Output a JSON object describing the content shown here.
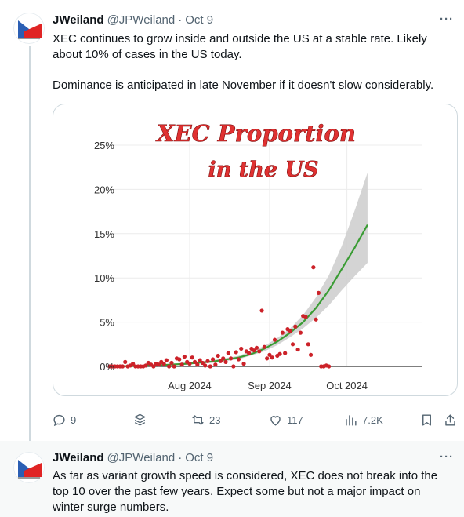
{
  "tweet1": {
    "author_name": "JWeiland",
    "handle": "@JPWeiland",
    "separator": "·",
    "date": "Oct 9",
    "paragraph1": "XEC continues to grow inside and outside the US at a stable rate.  Likely about 10% of cases in the US today.",
    "paragraph2": "Dominance is anticipated in late November if it doesn't slow considerably.",
    "actions": {
      "reply_count": "9",
      "retweet_count": "23",
      "like_count": "117",
      "views_count": "7.2K"
    }
  },
  "tweet2": {
    "author_name": "JWeiland",
    "handle": "@JPWeiland",
    "separator": "·",
    "date": "Oct 9",
    "paragraph1": "As far as variant growth speed is considered, XEC does not break into the top 10 over the past few years.  Expect some but not a major impact on winter surge numbers."
  },
  "icons": {
    "reply": "reply-icon",
    "grok": "grok-icon",
    "retweet": "retweet-icon",
    "like": "heart-icon",
    "views": "views-icon",
    "bookmark": "bookmark-icon",
    "share": "share-icon",
    "more": "more-icon"
  },
  "colors": {
    "text": "#0f1419",
    "muted": "#536471",
    "border": "#cfd9de",
    "points": "#cc2229",
    "fit": "#3a9c34",
    "band": "#cfcfcf",
    "title": "#e03131"
  },
  "chart_data": {
    "type": "scatter",
    "title_line1": "XEC Proportion",
    "title_line2": "in the US",
    "x_ticks": [
      "Aug 2024",
      "Sep 2024",
      "Oct 2024"
    ],
    "x_tick_days": [
      31,
      62,
      92
    ],
    "y_ticks": [
      "0%",
      "5%",
      "10%",
      "15%",
      "20%",
      "25%"
    ],
    "y_tick_values": [
      0,
      5,
      10,
      15,
      20,
      25
    ],
    "xlim": [
      0,
      121
    ],
    "ylim": [
      0,
      25
    ],
    "grid": true,
    "points": [
      [
        0,
        0
      ],
      [
        1,
        0
      ],
      [
        2,
        0
      ],
      [
        3,
        0
      ],
      [
        4,
        0
      ],
      [
        5,
        0
      ],
      [
        6,
        0.5
      ],
      [
        7,
        0
      ],
      [
        8,
        0.1
      ],
      [
        9,
        0.3
      ],
      [
        10,
        0
      ],
      [
        11,
        0
      ],
      [
        12,
        0
      ],
      [
        13,
        0
      ],
      [
        14,
        0.1
      ],
      [
        15,
        0.4
      ],
      [
        16,
        0.2
      ],
      [
        17,
        0
      ],
      [
        18,
        0.3
      ],
      [
        19,
        0.2
      ],
      [
        20,
        0.5
      ],
      [
        21,
        0.3
      ],
      [
        22,
        0.7
      ],
      [
        23,
        0
      ],
      [
        24,
        0.4
      ],
      [
        25,
        0
      ],
      [
        26,
        0.9
      ],
      [
        27,
        0.8
      ],
      [
        28,
        0.2
      ],
      [
        29,
        1.1
      ],
      [
        30,
        0.5
      ],
      [
        31,
        0.3
      ],
      [
        32,
        1.0
      ],
      [
        33,
        0.5
      ],
      [
        34,
        0.2
      ],
      [
        35,
        0.7
      ],
      [
        36,
        0.4
      ],
      [
        37,
        0.1
      ],
      [
        38,
        0.6
      ],
      [
        39,
        0
      ],
      [
        40,
        0.8
      ],
      [
        41,
        0.2
      ],
      [
        42,
        1.2
      ],
      [
        43,
        0.6
      ],
      [
        44,
        0.9
      ],
      [
        45,
        0.5
      ],
      [
        46,
        1.5
      ],
      [
        47,
        0.9
      ],
      [
        48,
        0
      ],
      [
        49,
        1.6
      ],
      [
        50,
        0.8
      ],
      [
        51,
        2.0
      ],
      [
        52,
        0.3
      ],
      [
        53,
        1.7
      ],
      [
        54,
        1.5
      ],
      [
        55,
        2.0
      ],
      [
        56,
        1.8
      ],
      [
        57,
        2.1
      ],
      [
        58,
        1.7
      ],
      [
        59,
        6.3
      ],
      [
        60,
        2.2
      ],
      [
        61,
        0.9
      ],
      [
        62,
        1.3
      ],
      [
        63,
        1.0
      ],
      [
        64,
        3.0
      ],
      [
        65,
        1.2
      ],
      [
        66,
        1.4
      ],
      [
        67,
        3.8
      ],
      [
        68,
        1.5
      ],
      [
        69,
        4.2
      ],
      [
        70,
        4.0
      ],
      [
        71,
        2.5
      ],
      [
        72,
        4.5
      ],
      [
        73,
        1.9
      ],
      [
        74,
        3.8
      ],
      [
        75,
        5.7
      ],
      [
        76,
        5.6
      ],
      [
        77,
        2.5
      ],
      [
        78,
        1.3
      ],
      [
        79,
        11.2
      ],
      [
        80,
        5.3
      ],
      [
        81,
        8.3
      ],
      [
        82,
        0
      ],
      [
        83,
        0
      ],
      [
        84,
        0.1
      ],
      [
        85,
        0
      ]
    ],
    "fit": [
      [
        0,
        0
      ],
      [
        10,
        0.05
      ],
      [
        20,
        0.15
      ],
      [
        30,
        0.3
      ],
      [
        40,
        0.55
      ],
      [
        50,
        1.0
      ],
      [
        55,
        1.4
      ],
      [
        60,
        2.0
      ],
      [
        65,
        2.8
      ],
      [
        70,
        3.8
      ],
      [
        75,
        5.0
      ],
      [
        80,
        6.6
      ],
      [
        85,
        8.6
      ],
      [
        90,
        11.0
      ],
      [
        95,
        13.4
      ],
      [
        100,
        16.0
      ]
    ],
    "band_upper": [
      [
        0,
        0
      ],
      [
        20,
        0.2
      ],
      [
        40,
        0.7
      ],
      [
        50,
        1.2
      ],
      [
        60,
        2.3
      ],
      [
        65,
        3.2
      ],
      [
        70,
        4.3
      ],
      [
        75,
        5.8
      ],
      [
        80,
        7.8
      ],
      [
        85,
        10.3
      ],
      [
        90,
        13.6
      ],
      [
        95,
        17.6
      ],
      [
        100,
        21.9
      ]
    ],
    "band_lower": [
      [
        0,
        0
      ],
      [
        20,
        0.1
      ],
      [
        40,
        0.4
      ],
      [
        50,
        0.8
      ],
      [
        60,
        1.7
      ],
      [
        65,
        2.4
      ],
      [
        70,
        3.3
      ],
      [
        75,
        4.3
      ],
      [
        80,
        5.5
      ],
      [
        85,
        6.9
      ],
      [
        90,
        8.6
      ],
      [
        95,
        10.2
      ],
      [
        100,
        11.7
      ]
    ]
  }
}
